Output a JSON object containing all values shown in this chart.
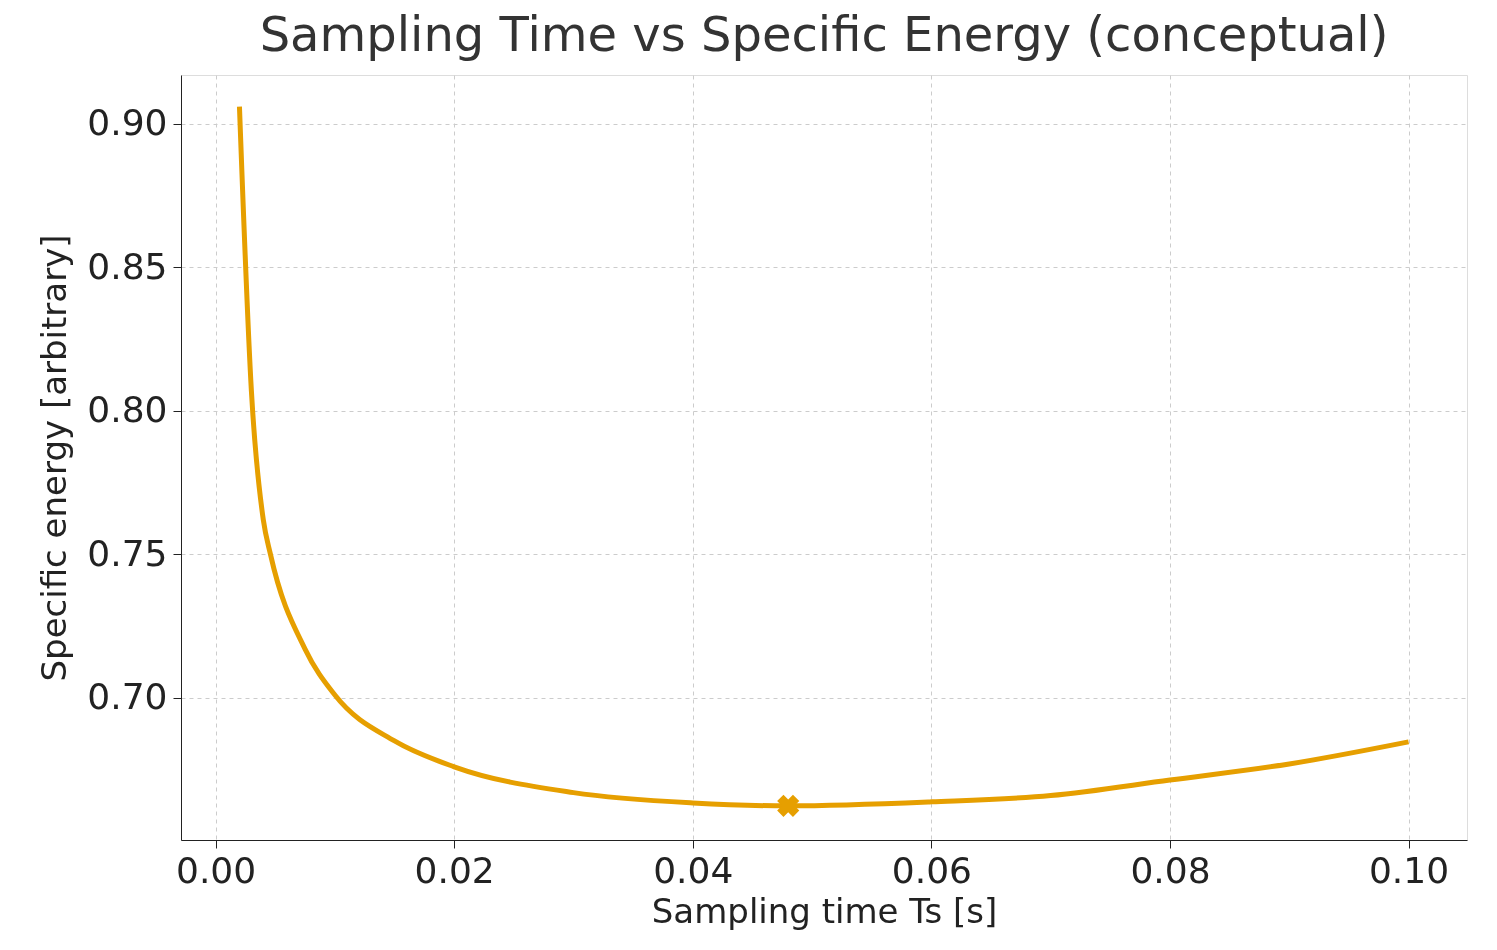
{
  "chart_data": {
    "type": "line",
    "title": "Sampling Time vs Specific Energy (conceptual)",
    "xlabel": "Sampling time Ts [s]",
    "ylabel": "Specific energy [arbitrary]",
    "series": [
      {
        "color": "#e69f00",
        "x": [
          0.002,
          0.003,
          0.004,
          0.0046,
          0.0075,
          0.01,
          0.015,
          0.02,
          0.03,
          0.04,
          0.048,
          0.06,
          0.07,
          0.08,
          0.09,
          0.1
        ],
        "values": [
          0.906,
          0.807,
          0.762,
          0.75,
          0.717,
          0.701,
          0.685,
          0.676,
          0.667,
          0.6634,
          0.6624,
          0.6638,
          0.666,
          0.6714,
          0.677,
          0.6847
        ]
      },
      {
        "type": "scatter",
        "color": "#e69f00",
        "marker": "cross",
        "x": [
          0.048
        ],
        "values": [
          0.6624
        ]
      }
    ],
    "xlim": [
      -0.0029,
      0.1049
    ],
    "ylim": [
      0.6505,
      0.917
    ],
    "xticks": [
      {
        "value": 0,
        "label": "0.00"
      },
      {
        "value": 0.02,
        "label": "0.02"
      },
      {
        "value": 0.04,
        "label": "0.04"
      },
      {
        "value": 0.06,
        "label": "0.06"
      },
      {
        "value": 0.08,
        "label": "0.08"
      },
      {
        "value": 0.1,
        "label": "0.10"
      }
    ],
    "yticks": [
      {
        "value": 0.7,
        "label": "0.70"
      },
      {
        "value": 0.75,
        "label": "0.75"
      },
      {
        "value": 0.8,
        "label": "0.80"
      },
      {
        "value": 0.85,
        "label": "0.85"
      },
      {
        "value": 0.9,
        "label": "0.90"
      }
    ],
    "grid": true,
    "line_style": "solid"
  }
}
